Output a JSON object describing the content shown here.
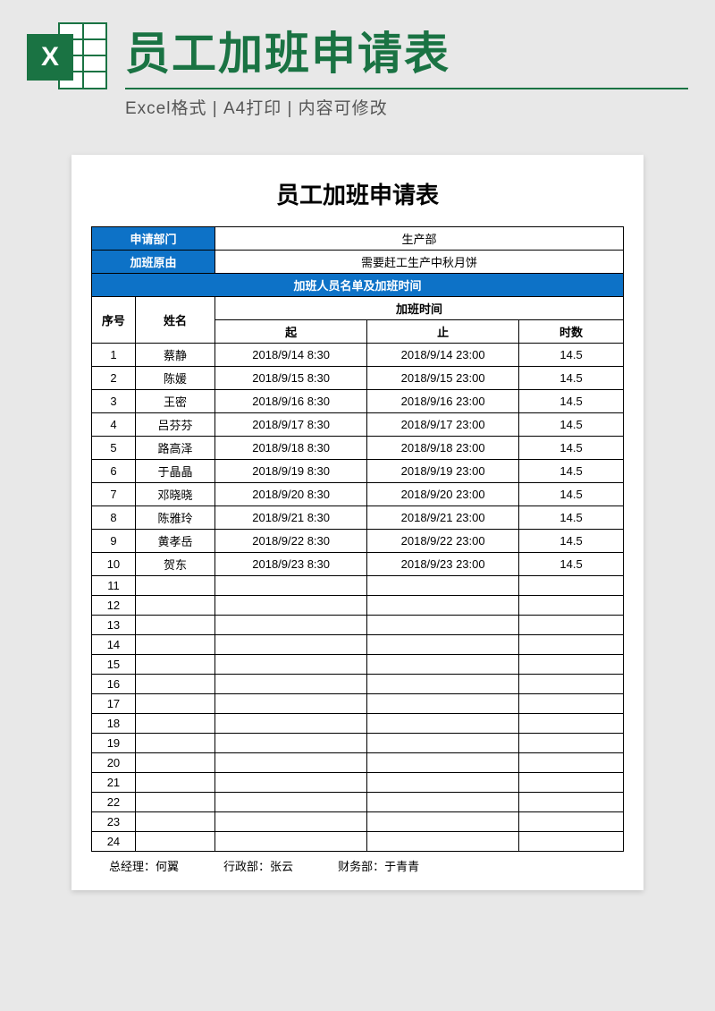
{
  "header": {
    "main_title": "员工加班申请表",
    "sub_title": "Excel格式 | A4打印 | 内容可修改",
    "icon_letter": "X"
  },
  "paper": {
    "title": "员工加班申请表",
    "dept_label": "申请部门",
    "dept_value": "生产部",
    "reason_label": "加班原由",
    "reason_value": "需要赶工生产中秋月饼",
    "section_header": "加班人员名单及加班时间",
    "columns": {
      "seq": "序号",
      "name": "姓名",
      "time_group": "加班时间",
      "start": "起",
      "end": "止",
      "hours": "时数"
    },
    "rows": [
      {
        "seq": "1",
        "name": "蔡静",
        "start": "2018/9/14 8:30",
        "end": "2018/9/14 23:00",
        "hours": "14.5"
      },
      {
        "seq": "2",
        "name": "陈媛",
        "start": "2018/9/15 8:30",
        "end": "2018/9/15 23:00",
        "hours": "14.5"
      },
      {
        "seq": "3",
        "name": "王密",
        "start": "2018/9/16 8:30",
        "end": "2018/9/16 23:00",
        "hours": "14.5"
      },
      {
        "seq": "4",
        "name": "吕芬芬",
        "start": "2018/9/17 8:30",
        "end": "2018/9/17 23:00",
        "hours": "14.5"
      },
      {
        "seq": "5",
        "name": "路高泽",
        "start": "2018/9/18 8:30",
        "end": "2018/9/18 23:00",
        "hours": "14.5"
      },
      {
        "seq": "6",
        "name": "于晶晶",
        "start": "2018/9/19 8:30",
        "end": "2018/9/19 23:00",
        "hours": "14.5"
      },
      {
        "seq": "7",
        "name": "邓晓晓",
        "start": "2018/9/20 8:30",
        "end": "2018/9/20 23:00",
        "hours": "14.5"
      },
      {
        "seq": "8",
        "name": "陈雅玲",
        "start": "2018/9/21 8:30",
        "end": "2018/9/21 23:00",
        "hours": "14.5"
      },
      {
        "seq": "9",
        "name": "黄孝岳",
        "start": "2018/9/22 8:30",
        "end": "2018/9/22 23:00",
        "hours": "14.5"
      },
      {
        "seq": "10",
        "name": "贺东",
        "start": "2018/9/23 8:30",
        "end": "2018/9/23 23:00",
        "hours": "14.5"
      },
      {
        "seq": "11",
        "name": "",
        "start": "",
        "end": "",
        "hours": ""
      },
      {
        "seq": "12",
        "name": "",
        "start": "",
        "end": "",
        "hours": ""
      },
      {
        "seq": "13",
        "name": "",
        "start": "",
        "end": "",
        "hours": ""
      },
      {
        "seq": "14",
        "name": "",
        "start": "",
        "end": "",
        "hours": ""
      },
      {
        "seq": "15",
        "name": "",
        "start": "",
        "end": "",
        "hours": ""
      },
      {
        "seq": "16",
        "name": "",
        "start": "",
        "end": "",
        "hours": ""
      },
      {
        "seq": "17",
        "name": "",
        "start": "",
        "end": "",
        "hours": ""
      },
      {
        "seq": "18",
        "name": "",
        "start": "",
        "end": "",
        "hours": ""
      },
      {
        "seq": "19",
        "name": "",
        "start": "",
        "end": "",
        "hours": ""
      },
      {
        "seq": "20",
        "name": "",
        "start": "",
        "end": "",
        "hours": ""
      },
      {
        "seq": "21",
        "name": "",
        "start": "",
        "end": "",
        "hours": ""
      },
      {
        "seq": "22",
        "name": "",
        "start": "",
        "end": "",
        "hours": ""
      },
      {
        "seq": "23",
        "name": "",
        "start": "",
        "end": "",
        "hours": ""
      },
      {
        "seq": "24",
        "name": "",
        "start": "",
        "end": "",
        "hours": ""
      }
    ],
    "footer": {
      "gm_label": "总经理：",
      "gm_value": "何翼",
      "admin_label": "行政部：",
      "admin_value": "张云",
      "finance_label": "财务部：",
      "finance_value": "于青青"
    }
  },
  "colors": {
    "brand_green": "#1a7343",
    "header_blue": "#0d72c7",
    "page_bg": "#e8e8e8",
    "paper_bg": "#ffffff",
    "border": "#000000"
  }
}
